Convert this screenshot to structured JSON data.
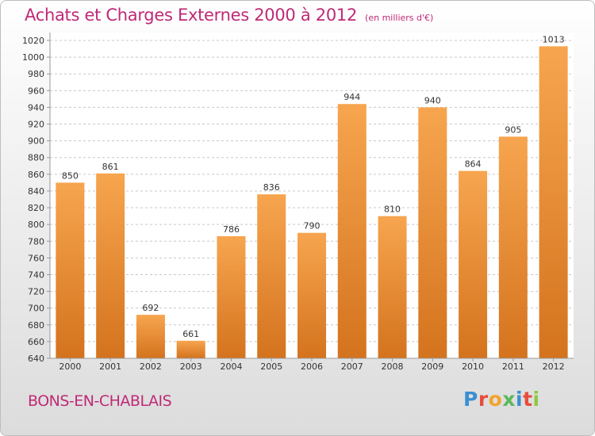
{
  "header": {
    "title": "Achats et Charges Externes 2000 à 2012",
    "subtitle": "(en milliers d'€)"
  },
  "footer": {
    "place": "BONS-EN-CHABLAIS",
    "logo": "Proxiti"
  },
  "colors": {
    "accent": "#bf2a76",
    "bar_light": "#f7a54f",
    "bar_dark": "#d4731e",
    "grid": "#c8c8c8"
  },
  "chart_data": {
    "type": "bar",
    "categories": [
      "2000",
      "2001",
      "2002",
      "2003",
      "2004",
      "2005",
      "2006",
      "2007",
      "2008",
      "2009",
      "2010",
      "2011",
      "2012"
    ],
    "values": [
      850,
      861,
      692,
      661,
      786,
      836,
      790,
      944,
      810,
      940,
      864,
      905,
      1013
    ],
    "title": "Achats et Charges Externes 2000 à 2012",
    "subtitle": "(en milliers d'€)",
    "xlabel": "",
    "ylabel": "",
    "ylim": [
      640,
      1020
    ],
    "ytick_step": 20,
    "grid": true,
    "data_labels": true
  }
}
